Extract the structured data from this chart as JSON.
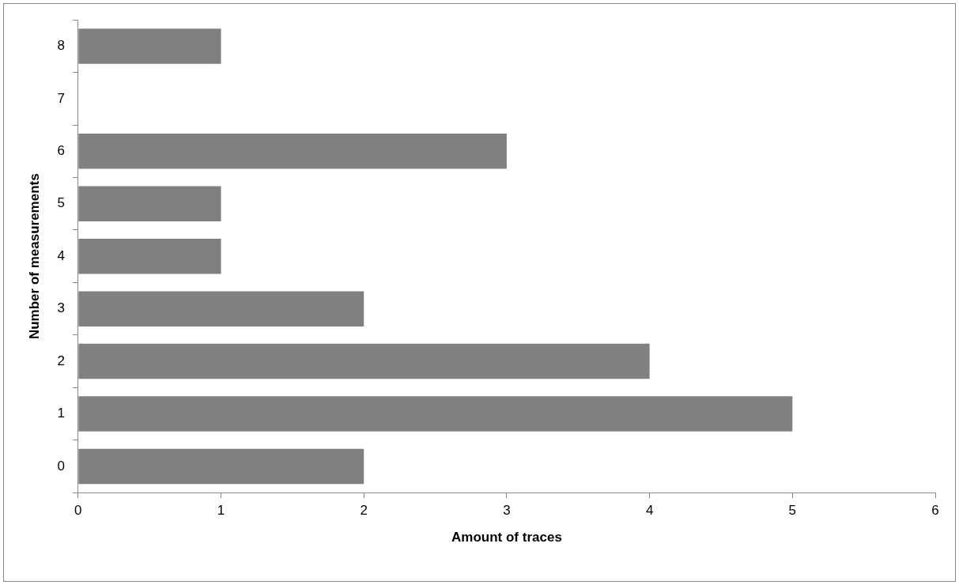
{
  "chart_data": {
    "type": "bar",
    "orientation": "horizontal",
    "xlabel": "Amount of traces",
    "ylabel": "Number of measurements",
    "categories": [
      "8",
      "7",
      "6",
      "5",
      "4",
      "3",
      "2",
      "1",
      "0"
    ],
    "values": [
      1,
      0,
      3,
      1,
      1,
      2,
      4,
      5,
      2
    ],
    "color": "#808080",
    "xlim": [
      0,
      6
    ],
    "xticks": [
      0,
      1,
      2,
      3,
      4,
      5,
      6
    ]
  }
}
